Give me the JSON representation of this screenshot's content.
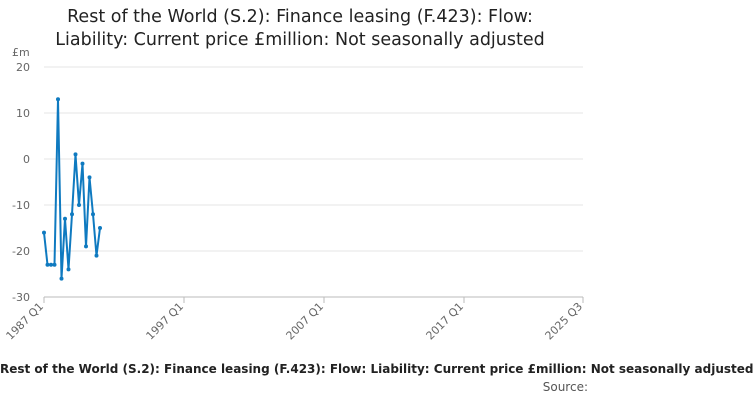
{
  "chart_data": {
    "type": "line",
    "title_lines": [
      "Rest of the World (S.2): Finance leasing (F.423): Flow:",
      "Liability: Current price £million: Not seasonally adjusted"
    ],
    "unit_label": "£m",
    "xlabel": "",
    "ylabel": "",
    "ylim": [
      -30,
      20
    ],
    "y_ticks": [
      20,
      10,
      0,
      -10,
      -20,
      -30
    ],
    "x_range": [
      "1987 Q1",
      "2025 Q3"
    ],
    "x_ticks": [
      "1987 Q1",
      "1997 Q1",
      "2007 Q1",
      "2017 Q1",
      "2025 Q3"
    ],
    "grid": "horizontal",
    "legend_text": "Rest of the World (S.2): Finance leasing (F.423): Flow: Liability: Current price £million: Not seasonally adjusted",
    "source_label": "Source:",
    "colors": {
      "series": "#0f7ac0",
      "grid": "#e6e6e6",
      "axis": "#bbbbbb",
      "tick_text": "#666666"
    },
    "series": [
      {
        "x": [
          "1987 Q1",
          "1987 Q2",
          "1987 Q3",
          "1987 Q4",
          "1988 Q1",
          "1988 Q2",
          "1988 Q3",
          "1988 Q4",
          "1989 Q1",
          "1989 Q2",
          "1989 Q3",
          "1989 Q4",
          "1990 Q1",
          "1990 Q2",
          "1990 Q3",
          "1990 Q4",
          "1991 Q1",
          "1991 Q2"
        ],
        "values": [
          -16,
          -23,
          -23,
          -23,
          13,
          -26,
          -13,
          -24,
          -12,
          1,
          -10,
          -1,
          -19,
          -4,
          -12,
          -21,
          -15,
          null
        ]
      }
    ]
  }
}
